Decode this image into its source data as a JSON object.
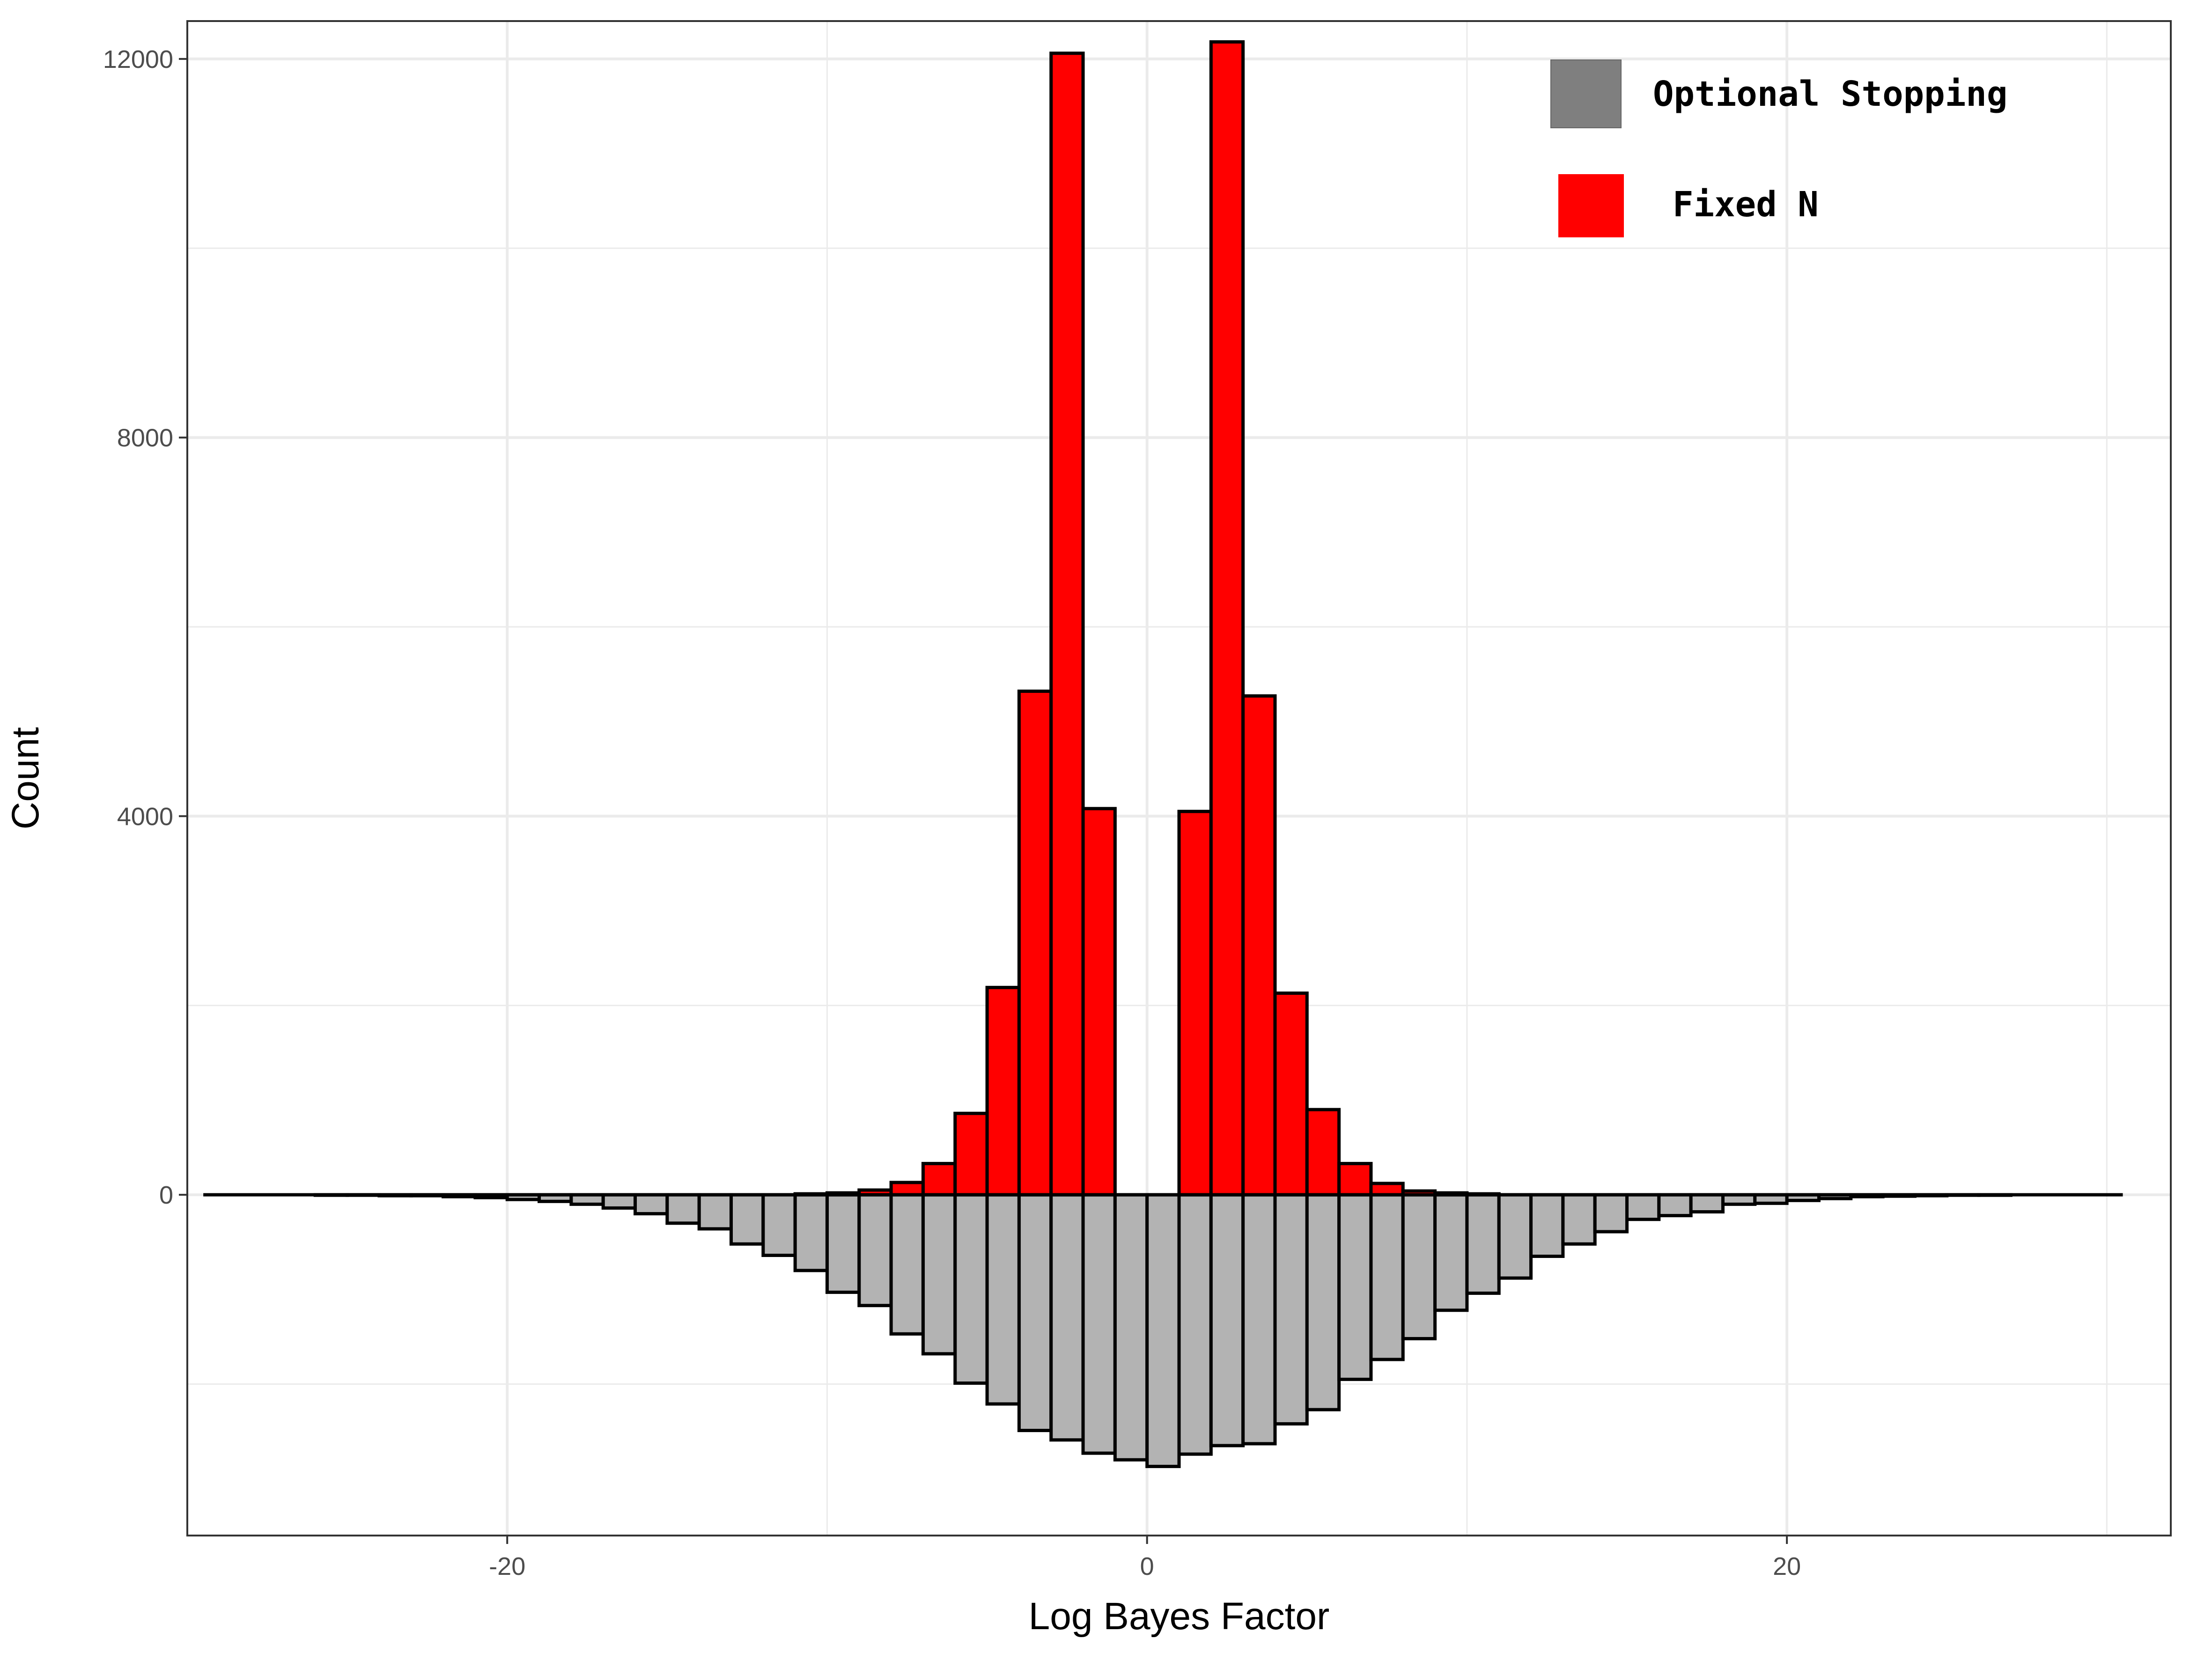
{
  "chart_data": {
    "type": "bar",
    "title": "",
    "xlabel": "Log Bayes Factor",
    "ylabel": "Count",
    "xlim": [
      -30,
      32
    ],
    "ylim": [
      -3600,
      12400
    ],
    "x_ticks": [
      -20,
      0,
      20
    ],
    "x_tick_labels": [
      "-20",
      "0",
      "20"
    ],
    "y_ticks": [
      0,
      4000,
      8000,
      12000
    ],
    "y_tick_labels": [
      "0",
      "4000",
      "8000",
      "12000"
    ],
    "grid": true,
    "legend_position": "top-right",
    "bin_width": 1,
    "series": [
      {
        "name": "Optional Stopping",
        "legend_color": "#7f7f7f",
        "fill_color": "#b3b3b3",
        "edge_color": "#000000",
        "direction": "down",
        "bins": [
          {
            "x": -29.5,
            "y": 0
          },
          {
            "x": -28.5,
            "y": 0
          },
          {
            "x": -27.5,
            "y": 0
          },
          {
            "x": -26.5,
            "y": 0
          },
          {
            "x": -25.5,
            "y": 5
          },
          {
            "x": -24.5,
            "y": 5
          },
          {
            "x": -23.5,
            "y": 10
          },
          {
            "x": -22.5,
            "y": 10
          },
          {
            "x": -21.5,
            "y": 20
          },
          {
            "x": -20.5,
            "y": 30
          },
          {
            "x": -19.5,
            "y": 50
          },
          {
            "x": -18.5,
            "y": 70
          },
          {
            "x": -17.5,
            "y": 100
          },
          {
            "x": -16.5,
            "y": 140
          },
          {
            "x": -15.5,
            "y": 200
          },
          {
            "x": -14.5,
            "y": 300
          },
          {
            "x": -13.5,
            "y": 360
          },
          {
            "x": -12.5,
            "y": 520
          },
          {
            "x": -11.5,
            "y": 640
          },
          {
            "x": -10.5,
            "y": 800
          },
          {
            "x": -9.5,
            "y": 1030
          },
          {
            "x": -8.5,
            "y": 1170
          },
          {
            "x": -7.5,
            "y": 1470
          },
          {
            "x": -6.5,
            "y": 1680
          },
          {
            "x": -5.5,
            "y": 1990
          },
          {
            "x": -4.5,
            "y": 2210
          },
          {
            "x": -3.5,
            "y": 2490
          },
          {
            "x": -2.5,
            "y": 2590
          },
          {
            "x": -1.5,
            "y": 2730
          },
          {
            "x": -0.5,
            "y": 2800
          },
          {
            "x": 0.5,
            "y": 2870
          },
          {
            "x": 1.5,
            "y": 2740
          },
          {
            "x": 2.5,
            "y": 2650
          },
          {
            "x": 3.5,
            "y": 2630
          },
          {
            "x": 4.5,
            "y": 2420
          },
          {
            "x": 5.5,
            "y": 2270
          },
          {
            "x": 6.5,
            "y": 1950
          },
          {
            "x": 7.5,
            "y": 1740
          },
          {
            "x": 8.5,
            "y": 1520
          },
          {
            "x": 9.5,
            "y": 1220
          },
          {
            "x": 10.5,
            "y": 1040
          },
          {
            "x": 11.5,
            "y": 880
          },
          {
            "x": 12.5,
            "y": 650
          },
          {
            "x": 13.5,
            "y": 520
          },
          {
            "x": 14.5,
            "y": 390
          },
          {
            "x": 15.5,
            "y": 260
          },
          {
            "x": 16.5,
            "y": 220
          },
          {
            "x": 17.5,
            "y": 180
          },
          {
            "x": 18.5,
            "y": 100
          },
          {
            "x": 19.5,
            "y": 90
          },
          {
            "x": 20.5,
            "y": 60
          },
          {
            "x": 21.5,
            "y": 40
          },
          {
            "x": 22.5,
            "y": 20
          },
          {
            "x": 23.5,
            "y": 15
          },
          {
            "x": 24.5,
            "y": 10
          },
          {
            "x": 25.5,
            "y": 5
          },
          {
            "x": 26.5,
            "y": 5
          },
          {
            "x": 27.5,
            "y": 0
          },
          {
            "x": 28.5,
            "y": 0
          },
          {
            "x": 29.5,
            "y": 0
          },
          {
            "x": 30.5,
            "y": 0
          }
        ]
      },
      {
        "name": "Fixed N",
        "legend_color": "#ff0000",
        "fill_color": "#ff0000",
        "edge_color": "#000000",
        "direction": "up",
        "bins": [
          {
            "x": -10.5,
            "y": 10
          },
          {
            "x": -9.5,
            "y": 20
          },
          {
            "x": -8.5,
            "y": 50
          },
          {
            "x": -7.5,
            "y": 130
          },
          {
            "x": -6.5,
            "y": 330
          },
          {
            "x": -5.5,
            "y": 860
          },
          {
            "x": -4.5,
            "y": 2190
          },
          {
            "x": -3.5,
            "y": 5320
          },
          {
            "x": -2.5,
            "y": 12060
          },
          {
            "x": -1.5,
            "y": 4080
          },
          {
            "x": -0.5,
            "y": 0
          },
          {
            "x": 0.5,
            "y": 0
          },
          {
            "x": 1.5,
            "y": 4050
          },
          {
            "x": 2.5,
            "y": 12180
          },
          {
            "x": 3.5,
            "y": 5270
          },
          {
            "x": 4.5,
            "y": 2130
          },
          {
            "x": 5.5,
            "y": 900
          },
          {
            "x": 6.5,
            "y": 330
          },
          {
            "x": 7.5,
            "y": 120
          },
          {
            "x": 8.5,
            "y": 40
          },
          {
            "x": 9.5,
            "y": 20
          },
          {
            "x": 10.5,
            "y": 10
          }
        ]
      }
    ],
    "baseline_range": [
      -29.5,
      30.5
    ]
  }
}
